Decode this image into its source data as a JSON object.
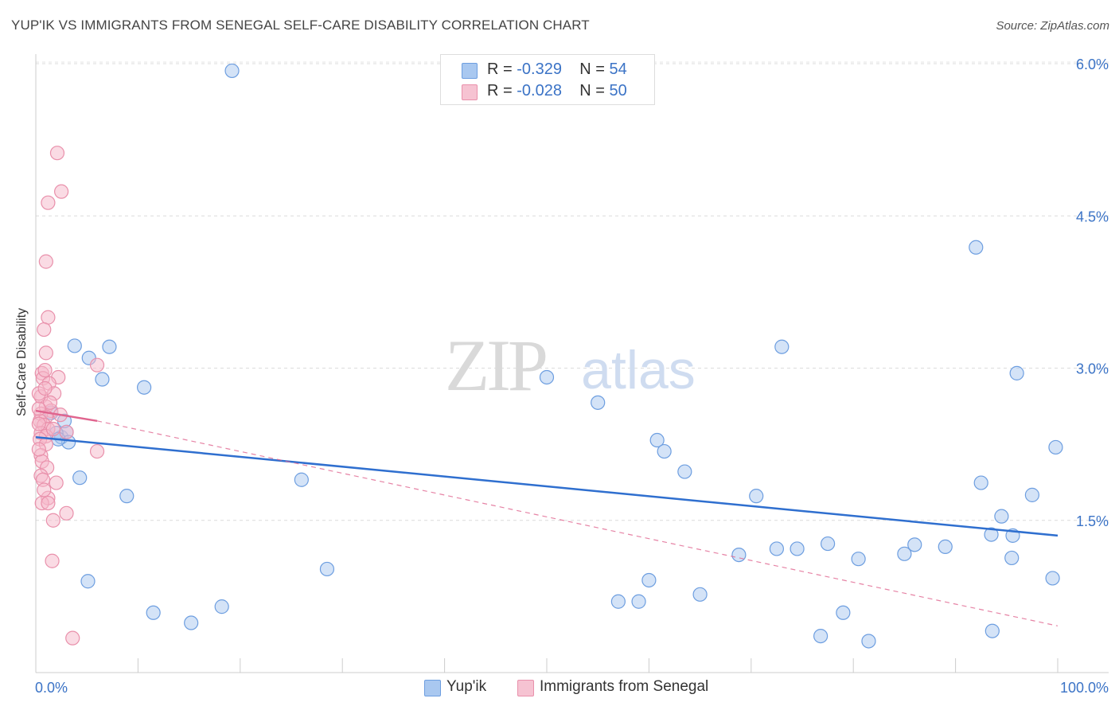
{
  "title": "YUP'IK VS IMMIGRANTS FROM SENEGAL SELF-CARE DISABILITY CORRELATION CHART",
  "source": "Source: ZipAtlas.com",
  "watermark": {
    "zip": "ZIP",
    "atlas": "atlas"
  },
  "colors": {
    "blue_fill": "#a9c8f0",
    "blue_stroke": "#6d9ee0",
    "blue_line": "#2f6fcf",
    "pink_fill": "#f6b7c9",
    "pink_stroke": "#e990ab",
    "pink_line": "#e0648e",
    "axis_text": "#3b73c6"
  },
  "stats": [
    {
      "r_label": "R =",
      "r_value": "-0.329",
      "n_label": "N =",
      "n_value": "54"
    },
    {
      "r_label": "R =",
      "r_value": "-0.028",
      "n_label": "N =",
      "n_value": "50"
    }
  ],
  "legend": [
    {
      "label": "Yup'ik"
    },
    {
      "label": "Immigrants from Senegal"
    }
  ],
  "chart_data": {
    "type": "scatter",
    "title": "YUP'IK VS IMMIGRANTS FROM SENEGAL SELF-CARE DISABILITY CORRELATION CHART",
    "xlabel": "",
    "ylabel": "Self-Care Disability",
    "xlim": [
      0,
      100
    ],
    "ylim": [
      0,
      6.3
    ],
    "x_tick_labels": [
      "0.0%",
      "100.0%"
    ],
    "y_ticks": [
      1.5,
      3.0,
      4.5,
      6.0
    ],
    "y_tick_labels": [
      "1.5%",
      "3.0%",
      "4.5%",
      "6.0%"
    ],
    "grid": true,
    "legend_position": "bottom-center",
    "series": [
      {
        "name": "Yup'ik",
        "color": "#a9c8f0",
        "trend": {
          "x": [
            0,
            100
          ],
          "y": [
            2.32,
            1.35
          ],
          "style": "solid"
        },
        "points": [
          [
            1.5,
            2.56
          ],
          [
            2.5,
            2.32
          ],
          [
            3.0,
            2.37
          ],
          [
            2.8,
            2.48
          ],
          [
            3.2,
            2.27
          ],
          [
            3.8,
            3.22
          ],
          [
            5.2,
            3.1
          ],
          [
            6.5,
            2.89
          ],
          [
            7.2,
            3.21
          ],
          [
            4.3,
            1.92
          ],
          [
            8.9,
            1.74
          ],
          [
            10.6,
            2.81
          ],
          [
            5.1,
            0.9
          ],
          [
            11.5,
            0.59
          ],
          [
            15.2,
            0.49
          ],
          [
            18.2,
            0.65
          ],
          [
            19.2,
            5.93
          ],
          [
            26.0,
            1.9
          ],
          [
            28.5,
            1.02
          ],
          [
            50.0,
            2.91
          ],
          [
            55.0,
            2.66
          ],
          [
            57.0,
            0.7
          ],
          [
            59.0,
            0.7
          ],
          [
            60.0,
            0.91
          ],
          [
            60.8,
            2.29
          ],
          [
            61.5,
            2.18
          ],
          [
            63.5,
            1.98
          ],
          [
            65.0,
            0.77
          ],
          [
            68.8,
            1.16
          ],
          [
            70.5,
            1.74
          ],
          [
            72.5,
            1.22
          ],
          [
            73.0,
            3.21
          ],
          [
            74.5,
            1.22
          ],
          [
            76.8,
            0.36
          ],
          [
            77.5,
            1.27
          ],
          [
            79.0,
            0.59
          ],
          [
            80.5,
            1.12
          ],
          [
            81.5,
            0.31
          ],
          [
            85.0,
            1.17
          ],
          [
            86.0,
            1.26
          ],
          [
            89.0,
            1.24
          ],
          [
            92.0,
            4.19
          ],
          [
            92.5,
            1.87
          ],
          [
            93.5,
            1.36
          ],
          [
            93.6,
            0.41
          ],
          [
            94.5,
            1.54
          ],
          [
            95.5,
            1.13
          ],
          [
            95.6,
            1.35
          ],
          [
            96.0,
            2.95
          ],
          [
            97.5,
            1.75
          ],
          [
            99.5,
            0.93
          ],
          [
            99.8,
            2.22
          ],
          [
            2.0,
            2.36
          ],
          [
            2.2,
            2.3
          ]
        ]
      },
      {
        "name": "Immigrants from Senegal",
        "color": "#f6b7c9",
        "trend": {
          "x": [
            0,
            6.0
          ],
          "y": [
            2.58,
            2.48
          ],
          "style": "solid"
        },
        "trend_extended": {
          "x": [
            6.0,
            100
          ],
          "y": [
            2.48,
            0.46
          ],
          "style": "dashed"
        },
        "points": [
          [
            2.1,
            5.12
          ],
          [
            2.5,
            4.74
          ],
          [
            1.2,
            4.63
          ],
          [
            1.0,
            4.05
          ],
          [
            1.2,
            3.5
          ],
          [
            0.8,
            3.38
          ],
          [
            1.0,
            3.15
          ],
          [
            6.0,
            3.03
          ],
          [
            2.2,
            2.91
          ],
          [
            0.6,
            2.95
          ],
          [
            0.7,
            2.9
          ],
          [
            1.3,
            2.85
          ],
          [
            1.8,
            2.75
          ],
          [
            0.5,
            2.72
          ],
          [
            1.0,
            2.62
          ],
          [
            1.5,
            2.58
          ],
          [
            0.5,
            2.55
          ],
          [
            1.0,
            2.52
          ],
          [
            0.4,
            2.48
          ],
          [
            0.8,
            2.44
          ],
          [
            1.2,
            2.4
          ],
          [
            0.5,
            2.36
          ],
          [
            1.0,
            2.33
          ],
          [
            1.7,
            2.4
          ],
          [
            3.0,
            2.37
          ],
          [
            0.4,
            2.3
          ],
          [
            1.0,
            2.25
          ],
          [
            6.0,
            2.18
          ],
          [
            0.5,
            2.14
          ],
          [
            0.6,
            2.08
          ],
          [
            1.1,
            2.02
          ],
          [
            0.5,
            1.94
          ],
          [
            0.7,
            1.9
          ],
          [
            2.0,
            1.87
          ],
          [
            1.2,
            1.72
          ],
          [
            0.6,
            1.67
          ],
          [
            1.2,
            1.67
          ],
          [
            3.0,
            1.57
          ],
          [
            1.7,
            1.5
          ],
          [
            1.6,
            1.1
          ],
          [
            3.6,
            0.34
          ],
          [
            0.3,
            2.75
          ],
          [
            0.9,
            2.8
          ],
          [
            1.4,
            2.66
          ],
          [
            0.3,
            2.6
          ],
          [
            0.9,
            2.98
          ],
          [
            0.3,
            2.2
          ],
          [
            0.8,
            1.8
          ],
          [
            2.4,
            2.54
          ],
          [
            0.3,
            2.45
          ]
        ]
      }
    ]
  }
}
